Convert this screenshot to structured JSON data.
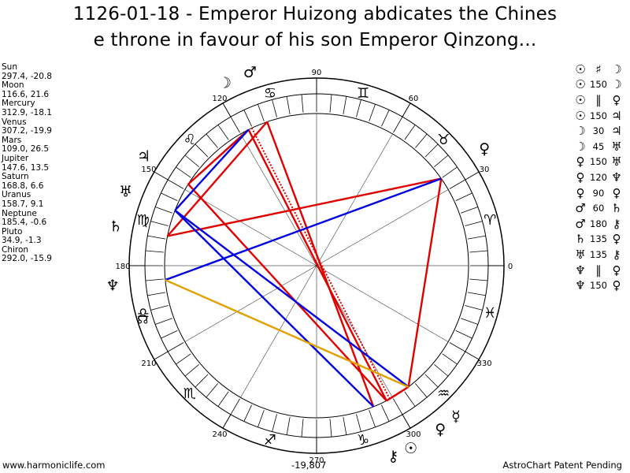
{
  "title": {
    "line1": "1126-01-18 - Emperor Huizong abdicates the Chines",
    "line2": "e throne in favour of his son Emperor Qinzong..."
  },
  "planet_positions": [
    {
      "name": "Sun",
      "value": "297.4, -20.8"
    },
    {
      "name": "Moon",
      "value": "116.6, 21.6"
    },
    {
      "name": "Mercury",
      "value": "312.9, -18.1"
    },
    {
      "name": "Venus",
      "value": "307.2, -19.9"
    },
    {
      "name": "Mars",
      "value": "109.0, 26.5"
    },
    {
      "name": "Jupiter",
      "value": "147.6, 13.5"
    },
    {
      "name": "Saturn",
      "value": "168.8, 6.6"
    },
    {
      "name": "Uranus",
      "value": "158.7, 9.1"
    },
    {
      "name": "Neptune",
      "value": "185.4, -0.6"
    },
    {
      "name": "Pluto",
      "value": "34.9, -1.3"
    },
    {
      "name": "Chiron",
      "value": "292.0, -15.9"
    }
  ],
  "aspect_list": [
    {
      "p1": "☉",
      "orb": "♯",
      "p2": "☽",
      "sym": true
    },
    {
      "p1": "☉",
      "orb": "150",
      "p2": "☽",
      "sym": false
    },
    {
      "p1": "☉",
      "orb": "∥",
      "p2": "♀",
      "sym": true
    },
    {
      "p1": "☉",
      "orb": "150",
      "p2": "♃",
      "sym": false
    },
    {
      "p1": "☽",
      "orb": "30",
      "p2": "♃",
      "sym": false
    },
    {
      "p1": "☽",
      "orb": "45",
      "p2": "♅",
      "sym": false
    },
    {
      "p1": "♀",
      "orb": "150",
      "p2": "♅",
      "sym": false
    },
    {
      "p1": "♀",
      "orb": "120",
      "p2": "♆",
      "sym": false
    },
    {
      "p1": "♀",
      "orb": "90",
      "p2": "♀",
      "sym": false
    },
    {
      "p1": "♂",
      "orb": "60",
      "p2": "♄",
      "sym": false
    },
    {
      "p1": "♂",
      "orb": "180",
      "p2": "⚷",
      "sym": false
    },
    {
      "p1": "♄",
      "orb": "135",
      "p2": "♀",
      "sym": false
    },
    {
      "p1": "♅",
      "orb": "135",
      "p2": "⚷",
      "sym": false
    },
    {
      "p1": "♆",
      "orb": "∥",
      "p2": "♀",
      "sym": true
    },
    {
      "p1": "♆",
      "orb": "150",
      "p2": "♀",
      "sym": false
    }
  ],
  "degree_labels": [
    "90",
    "60",
    "30",
    "0",
    "330",
    "300",
    "270",
    "240",
    "210",
    "180",
    "150",
    "120"
  ],
  "zodiac_glyphs": [
    "♈",
    "♉",
    "♊",
    "♋",
    "♌",
    "♍",
    "♎",
    "♏",
    "♐",
    "♑",
    "♒",
    "♓"
  ],
  "north_node_glyph": "☊",
  "chart_planets": [
    {
      "glyph": "☉",
      "lon": 297.4
    },
    {
      "glyph": "☽",
      "lon": 116.6
    },
    {
      "glyph": "☿",
      "lon": 312.9
    },
    {
      "glyph": "♀",
      "lon": 307.2
    },
    {
      "glyph": "♂",
      "lon": 109.0
    },
    {
      "glyph": "♃",
      "lon": 147.6
    },
    {
      "glyph": "♄",
      "lon": 168.8
    },
    {
      "glyph": "♅",
      "lon": 158.7
    },
    {
      "glyph": "♆",
      "lon": 185.4
    },
    {
      "glyph": "♀",
      "lon": 34.9
    },
    {
      "glyph": "⚷",
      "lon": 292.0
    }
  ],
  "aspect_lines": [
    {
      "a": 297.4,
      "b": 116.6,
      "color": "#e00000",
      "dotted": true
    },
    {
      "a": 297.4,
      "b": 147.6,
      "color": "#e00000"
    },
    {
      "a": 116.6,
      "b": 147.6,
      "color": "#e00000"
    },
    {
      "a": 109.0,
      "b": 292.0,
      "color": "#e00000"
    },
    {
      "a": 109.0,
      "b": 168.8,
      "color": "#e00000"
    },
    {
      "a": 307.2,
      "b": 34.9,
      "color": "#e00000"
    },
    {
      "a": 168.8,
      "b": 34.9,
      "color": "#e00000"
    },
    {
      "a": 297.4,
      "b": 307.2,
      "color": "#e00000",
      "dotted": true
    },
    {
      "a": 116.6,
      "b": 158.7,
      "color": "#0000e0"
    },
    {
      "a": 307.2,
      "b": 158.7,
      "color": "#0000e0"
    },
    {
      "a": 292.0,
      "b": 158.7,
      "color": "#0000e0"
    },
    {
      "a": 185.4,
      "b": 34.9,
      "color": "#0000e0"
    },
    {
      "a": 185.4,
      "b": 307.2,
      "color": "#e0a000"
    }
  ],
  "footer": {
    "left": "www.harmoniclife.com",
    "mid": "-19,807",
    "right": "AstroChart Patent Pending"
  }
}
